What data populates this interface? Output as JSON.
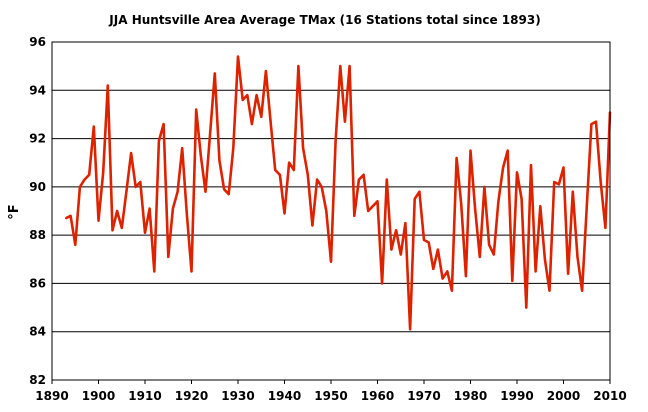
{
  "chart_data": {
    "type": "line",
    "title": "JJA Huntsville Area Average TMax (16 Stations total since 1893)",
    "xlabel": "",
    "ylabel": "°F",
    "xlim": [
      1890,
      2010
    ],
    "ylim": [
      82,
      96
    ],
    "xticks": [
      1890,
      1900,
      1910,
      1920,
      1930,
      1940,
      1950,
      1960,
      1970,
      1980,
      1990,
      2000,
      2010
    ],
    "yticks": [
      82,
      84,
      86,
      88,
      90,
      92,
      94,
      96
    ],
    "grid": "horizontal",
    "legend": "none",
    "line_color": "#dd2200",
    "series": [
      {
        "x": [
          1893,
          1894,
          1895,
          1896,
          1897,
          1898,
          1899,
          1900,
          1901,
          1902,
          1903,
          1904,
          1905,
          1906,
          1907,
          1908,
          1909,
          1910,
          1911,
          1912,
          1913,
          1914,
          1915,
          1916,
          1917,
          1918,
          1919,
          1920,
          1921,
          1922,
          1923,
          1924,
          1925,
          1926,
          1927,
          1928,
          1929,
          1930,
          1931,
          1932,
          1933,
          1934,
          1935,
          1936,
          1937,
          1938,
          1939,
          1940,
          1941,
          1942,
          1943,
          1944,
          1945,
          1946,
          1947,
          1948,
          1949,
          1950,
          1951,
          1952,
          1953,
          1954,
          1955,
          1956,
          1957,
          1958,
          1959,
          1960,
          1961,
          1962,
          1963,
          1964,
          1965,
          1966,
          1967,
          1968,
          1969,
          1970,
          1971,
          1972,
          1973,
          1974,
          1975,
          1976,
          1977,
          1978,
          1979,
          1980,
          1981,
          1982,
          1983,
          1984,
          1985,
          1986,
          1987,
          1988,
          1989,
          1990,
          1991,
          1992,
          1993,
          1994,
          1995,
          1996,
          1997,
          1998,
          1999,
          2000,
          2001,
          2002,
          2003,
          2004,
          2005,
          2006,
          2007,
          2008,
          2009,
          2010
        ],
        "values": [
          88.7,
          88.8,
          87.6,
          90.0,
          90.3,
          90.5,
          92.5,
          88.6,
          90.6,
          94.2,
          88.2,
          89.0,
          88.3,
          89.8,
          91.4,
          90.0,
          90.2,
          88.1,
          89.1,
          86.5,
          91.9,
          92.6,
          87.1,
          89.1,
          89.8,
          91.6,
          88.9,
          86.5,
          93.2,
          91.3,
          89.8,
          92.2,
          94.7,
          91.1,
          89.9,
          89.7,
          91.6,
          95.4,
          93.6,
          93.8,
          92.6,
          93.8,
          92.9,
          94.8,
          92.7,
          90.7,
          90.5,
          88.9,
          91.0,
          90.7,
          95.0,
          91.6,
          90.5,
          88.4,
          90.3,
          90.0,
          89.0,
          86.9,
          91.9,
          95.0,
          92.7,
          95.0,
          88.8,
          90.3,
          90.5,
          89.0,
          89.2,
          89.4,
          86.0,
          90.3,
          87.4,
          88.2,
          87.2,
          88.5,
          84.1,
          89.5,
          89.8,
          87.8,
          87.7,
          86.6,
          87.4,
          86.2,
          86.5,
          85.7,
          91.2,
          89.3,
          86.3,
          91.5,
          89.1,
          87.1,
          90.0,
          87.6,
          87.2,
          89.4,
          90.8,
          91.5,
          86.1,
          90.6,
          89.5,
          85.0,
          90.9,
          86.5,
          89.2,
          87.0,
          85.7,
          90.2,
          90.1,
          90.8,
          86.4,
          89.8,
          87.1,
          85.7,
          89.2,
          92.6,
          92.7,
          90.2,
          88.3,
          93.1
        ]
      }
    ]
  }
}
